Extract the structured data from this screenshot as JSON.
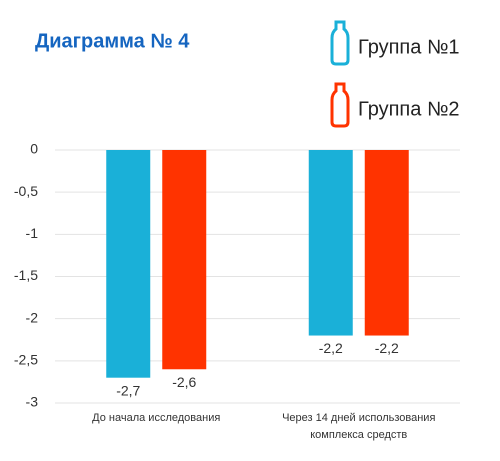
{
  "chart_data": {
    "type": "bar",
    "title": "Диаграмма № 4",
    "categories": [
      "До начала исследования",
      "Через 14 дней использования комплекса средств"
    ],
    "series": [
      {
        "name": "Группа №1",
        "color": "#1ab0d8",
        "values": [
          -2.7,
          -2.2
        ],
        "value_labels": [
          "-2,7",
          "-2,2"
        ]
      },
      {
        "name": "Группа №2",
        "color": "#ff3300",
        "values": [
          -2.6,
          -2.2
        ],
        "value_labels": [
          "-2,6",
          "-2,2"
        ]
      }
    ],
    "ylim": [
      -3,
      0
    ],
    "yticks": [
      0,
      {
        "value": -0.5,
        "label": "-0,5"
      },
      -1,
      {
        "value": -1.5,
        "label": "-1,5"
      },
      -2,
      {
        "value": -2.5,
        "label": "-2,5"
      },
      -3
    ],
    "grid": true
  }
}
